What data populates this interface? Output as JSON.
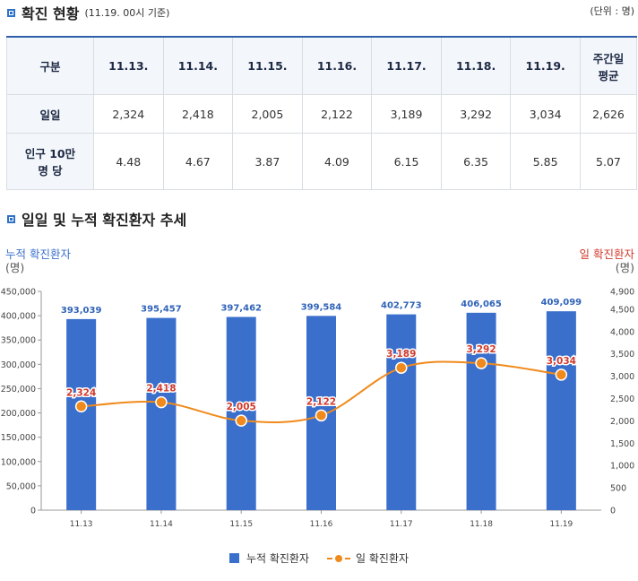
{
  "header": {
    "title": "확진 현황",
    "date_note": "(11.19. 00시 기준)",
    "unit": "(단위 : 명)"
  },
  "table": {
    "columns": [
      "구분",
      "11.13.",
      "11.14.",
      "11.15.",
      "11.16.",
      "11.17.",
      "11.18.",
      "11.19.",
      "주간일\n평균"
    ],
    "rows": [
      {
        "label": "일일",
        "values": [
          "2,324",
          "2,418",
          "2,005",
          "2,122",
          "3,189",
          "3,292",
          "3,034",
          "2,626"
        ]
      },
      {
        "label": "인구 10만\n명 당",
        "values": [
          "4.48",
          "4.67",
          "3.87",
          "4.09",
          "6.15",
          "6.35",
          "5.85",
          "5.07"
        ]
      }
    ]
  },
  "chart_section": {
    "title": "일일 및 누적 확진환자 추세"
  },
  "chart_data": {
    "type": "bar+line",
    "categories": [
      "11.13",
      "11.14",
      "11.15",
      "11.16",
      "11.17",
      "11.18",
      "11.19"
    ],
    "series": [
      {
        "name": "누적 확진환자",
        "type": "bar",
        "axis": "left",
        "values": [
          393039,
          395457,
          397462,
          399584,
          402773,
          406065,
          409099
        ],
        "labels": [
          "393,039",
          "395,457",
          "397,462",
          "399,584",
          "402,773",
          "406,065",
          "409,099"
        ],
        "color": "#3a6fcc"
      },
      {
        "name": "일 확진환자",
        "type": "line",
        "axis": "right",
        "values": [
          2324,
          2418,
          2005,
          2122,
          3189,
          3292,
          3034
        ],
        "labels": [
          "2,324",
          "2,418",
          "2,005",
          "2,122",
          "3,189",
          "3,292",
          "3,034"
        ],
        "color": "#f08a1c"
      }
    ],
    "left_axis": {
      "label": "누적 확진환자",
      "unit": "(명)",
      "ylim": [
        0,
        450000
      ],
      "ticks": [
        "0",
        "50,000",
        "100,000",
        "150,000",
        "200,000",
        "250,000",
        "300,000",
        "350,000",
        "400,000",
        "450,000"
      ],
      "color": "#3a6fcc"
    },
    "right_axis": {
      "label": "일 확진환자",
      "unit": "(명)",
      "ylim": [
        0,
        4900
      ],
      "ticks": [
        "0",
        "500",
        "1,000",
        "1,500",
        "2,000",
        "2,500",
        "3,000",
        "3,500",
        "4,000",
        "4,500",
        "4,900"
      ],
      "color": "#d1392b"
    },
    "legend": [
      "누적 확진환자",
      "일 확진환자"
    ]
  }
}
